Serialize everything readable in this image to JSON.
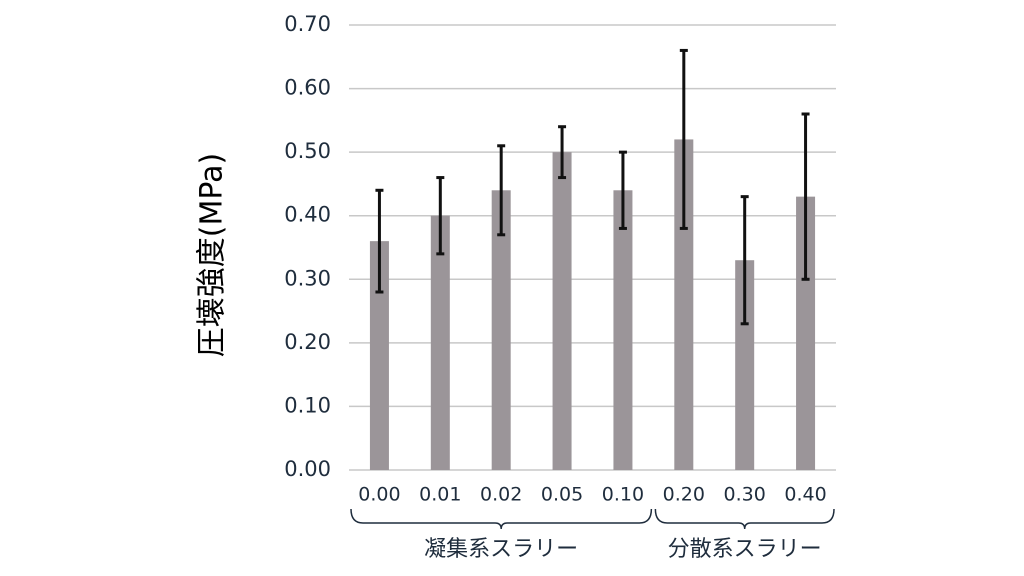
{
  "chart_data": {
    "type": "bar",
    "ylabel": "圧壊強度(MPa)",
    "ylim": [
      0,
      0.7
    ],
    "yticks": [
      "0.00",
      "0.10",
      "0.20",
      "0.30",
      "0.40",
      "0.50",
      "0.60",
      "0.70"
    ],
    "grid": true,
    "categories": [
      "0.00",
      "0.01",
      "0.02",
      "0.05",
      "0.10",
      "0.20",
      "0.30",
      "0.40"
    ],
    "values": [
      0.36,
      0.4,
      0.44,
      0.5,
      0.44,
      0.52,
      0.33,
      0.43
    ],
    "error_low": [
      0.28,
      0.34,
      0.37,
      0.46,
      0.38,
      0.38,
      0.23,
      0.3
    ],
    "error_high": [
      0.44,
      0.46,
      0.51,
      0.54,
      0.5,
      0.66,
      0.43,
      0.56
    ],
    "groups": [
      {
        "label": "凝集系スラリー",
        "categories": [
          "0.00",
          "0.01",
          "0.02",
          "0.05",
          "0.10"
        ]
      },
      {
        "label": "分散系スラリー",
        "categories": [
          "0.20",
          "0.30",
          "0.40"
        ]
      }
    ],
    "colors": {
      "bar": "#9b9599",
      "grid": "#c8c8c8",
      "error": "#111111",
      "text": "#1f2d3d"
    }
  }
}
